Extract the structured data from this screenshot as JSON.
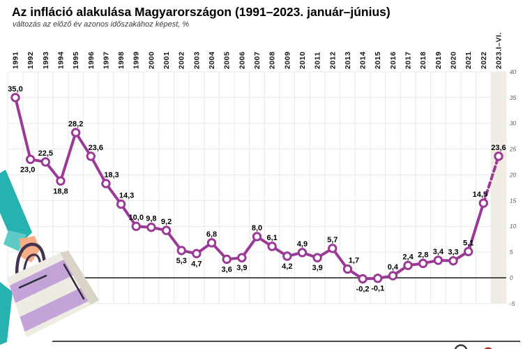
{
  "header": {
    "title": "Az infláció alakulása Magyarországon (1991–2023. január–június)",
    "subtitle": "változás az előző év azonos időszakához képest, %"
  },
  "chart_data": {
    "type": "line",
    "title": "Az infláció alakulása Magyarországon (1991–2023. január–június)",
    "subtitle": "változás az előző év azonos időszakához képest, %",
    "categories": [
      "1991",
      "1992",
      "1993",
      "1994",
      "1995",
      "1996",
      "1997",
      "1998",
      "1999",
      "2000",
      "2001",
      "2002",
      "2003",
      "2004",
      "2005",
      "2006",
      "2007",
      "2008",
      "2009",
      "2010",
      "2011",
      "2012",
      "2013",
      "2014",
      "2015",
      "2016",
      "2017",
      "2018",
      "2019",
      "2020",
      "2021",
      "2022",
      "2023.I–VI."
    ],
    "values": [
      35.0,
      23.0,
      22.5,
      18.8,
      28.2,
      23.6,
      18.3,
      14.3,
      10.0,
      9.8,
      9.2,
      5.3,
      4.7,
      6.8,
      3.6,
      3.9,
      8.0,
      6.1,
      4.2,
      4.9,
      3.9,
      5.7,
      1.7,
      -0.2,
      -0.1,
      0.4,
      2.4,
      2.8,
      3.4,
      3.3,
      5.1,
      14.5,
      23.6
    ],
    "labels": [
      "35,0",
      "23,0",
      "22,5",
      "18,8",
      "28,2",
      "23,6",
      "18,3",
      "14,3",
      "10,0",
      "9,8",
      "9,2",
      "5,3",
      "4,7",
      "6,8",
      "3,6",
      "3,9",
      "8,0",
      "6,1",
      "4,2",
      "4,9",
      "3,9",
      "5,7",
      "1,7",
      "-0,2",
      "-0,1",
      "0,4",
      "2,4",
      "2,8",
      "3,4",
      "3,3",
      "5,1",
      "14,5",
      "23,6"
    ],
    "label_positions": [
      "above",
      "below",
      "above",
      "below",
      "above",
      "above",
      "above",
      "above",
      "above",
      "above",
      "above",
      "below",
      "below",
      "above",
      "below",
      "below",
      "above",
      "above",
      "below",
      "above",
      "below",
      "above",
      "above",
      "below",
      "below",
      "above",
      "above",
      "above",
      "above",
      "above",
      "above",
      "above",
      "above"
    ],
    "label_dx": [
      0,
      -4,
      0,
      0,
      0,
      7,
      8,
      8,
      0,
      0,
      0,
      0,
      0,
      0,
      0,
      0,
      0,
      0,
      0,
      0,
      0,
      0,
      9,
      0,
      0,
      0,
      0,
      0,
      0,
      0,
      0,
      -5,
      0
    ],
    "ylim": [
      -5,
      40
    ],
    "yticks": [
      40,
      35,
      30,
      25,
      20,
      15,
      10,
      5,
      0,
      -5
    ],
    "grid": true,
    "legend": "none",
    "axis_side": "right",
    "line_color": "#9a3a96",
    "marker_fill": "#ffffff",
    "grid_color": "#e9e9e9",
    "zero_line_color": "#161616",
    "dashed_last_segment": true,
    "highlight_last_category": true,
    "highlight_color": "#f1ede3"
  },
  "decor": {
    "illustration": "hand-holding-striped-shopping-bag",
    "colors": {
      "teal": "#25b2b0",
      "teal_light": "#5ecac6",
      "skin": "#f7ad86",
      "handle": "#443351",
      "bag": "#edebe2",
      "bag_side": "#d9d4c6",
      "stripe": "#c4a3d9",
      "crease": "#2c2c38"
    }
  },
  "footer": {
    "divider": "horizontal-rule",
    "logo": "partial-logo-cut-off-at-bottom"
  }
}
